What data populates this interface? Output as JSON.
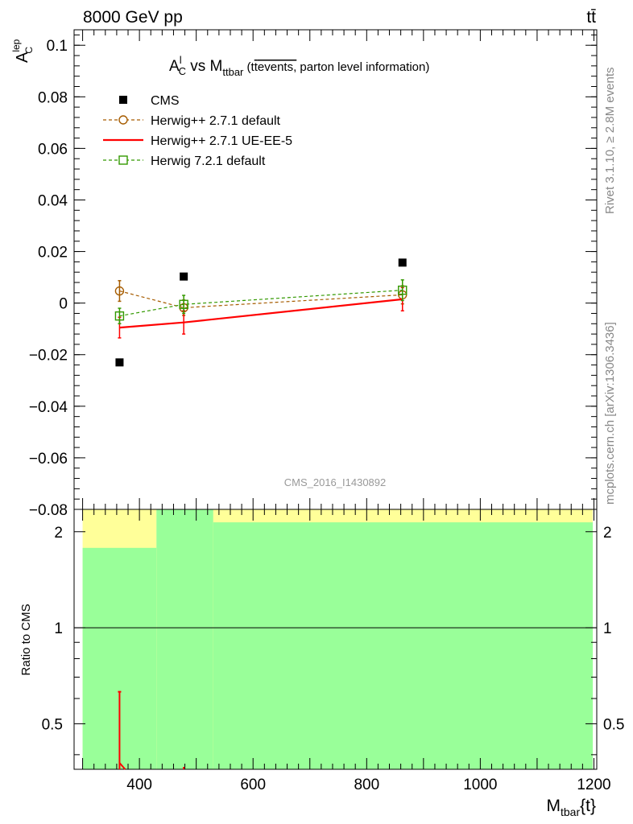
{
  "header": {
    "energy_label": "8000 GeV pp",
    "process_label": "tt̄"
  },
  "side_labels": {
    "rivet": "Rivet 3.1.10, ≥ 2.8M events",
    "mcplots": "mcplots.cern.ch [arXiv:1306.3436]"
  },
  "chart_data": [
    {
      "type": "scatter",
      "title": {
        "main": "A",
        "main_sup": "l",
        "main_sub": "C",
        "vs": " vs M",
        "vs_sub": "ttbar",
        "paren_open": " (t",
        "tbar": "t",
        "overlined": "events,",
        "rest": " parton level information)"
      },
      "ylabel": {
        "base": "A",
        "sup": "lep",
        "sub": "C"
      },
      "xlim": [
        285,
        1205
      ],
      "ylim": [
        -0.08,
        0.106
      ],
      "grid": false,
      "yticks": [
        -0.08,
        -0.06,
        -0.04,
        -0.02,
        0,
        0.02,
        0.04,
        0.06,
        0.08,
        0.1
      ],
      "ytick_labels": [
        "−0.08",
        "−0.06",
        "−0.04",
        "−0.02",
        "0",
        "0.02",
        "0.04",
        "0.06",
        "0.08",
        "0.1"
      ],
      "legend_position": "top-left",
      "watermark": "CMS_2016_I1430892",
      "series": [
        {
          "name": "CMS",
          "style": "data",
          "color": "#000000",
          "x": [
            365,
            478,
            863
          ],
          "y": [
            -0.023,
            0.0103,
            0.0157
          ]
        },
        {
          "name": "Herwig++ 2.7.1 default",
          "style": "circle-dashed",
          "color": "#a65c00",
          "x": [
            365,
            478,
            863
          ],
          "y": [
            0.0047,
            -0.0018,
            0.0032
          ],
          "err": [
            0.004,
            0.003,
            0.0035
          ]
        },
        {
          "name": "Herwig++ 2.7.1 UE-EE-5",
          "style": "solid",
          "color": "#ff0000",
          "x": [
            365,
            478,
            863
          ],
          "y": [
            -0.0095,
            -0.0075,
            0.0015
          ],
          "err": [
            0.004,
            0.0045,
            0.0045
          ]
        },
        {
          "name": "Herwig 7.2.1 default",
          "style": "square-dashed",
          "color": "#339900",
          "x": [
            365,
            478,
            863
          ],
          "y": [
            -0.005,
            -0.0005,
            0.005
          ],
          "err": [
            0.003,
            0.0035,
            0.004
          ]
        }
      ]
    },
    {
      "type": "area",
      "ylabel": "Ratio to CMS",
      "xlabel": {
        "base": "M",
        "sub": "tbar",
        "rest": "{t}"
      },
      "log_y": true,
      "xlim": [
        285,
        1205
      ],
      "ylim": [
        0.36,
        2.35
      ],
      "yticks": [
        0.5,
        1,
        2
      ],
      "ytick_labels": [
        "0.5",
        "1",
        "2"
      ],
      "xticks": [
        400,
        600,
        800,
        1000,
        1200
      ],
      "xtick_labels": [
        "400",
        "600",
        "800",
        "1000",
        "1200"
      ],
      "reference_line": 1,
      "bands": [
        {
          "x0": 300,
          "x1": 430,
          "green": [
            0.36,
            1.78
          ],
          "yellow": [
            0.36,
            2.35
          ]
        },
        {
          "x0": 430,
          "x1": 530,
          "green": [
            0.36,
            2.35
          ],
          "yellow": [
            0.36,
            2.35
          ]
        },
        {
          "x0": 530,
          "x1": 1198,
          "green": [
            0.36,
            2.14
          ],
          "yellow": [
            0.36,
            2.35
          ]
        }
      ],
      "band_colors": {
        "yellow": "#ffff99",
        "green": "#99ff99"
      },
      "ratio_series": [
        {
          "name": "Herwig++ 2.7.1 UE-EE-5",
          "color": "#ff0000",
          "x": [
            365,
            372,
            478
          ],
          "y": [
            0.36,
            0.36,
            0.36
          ],
          "err_top_at_first": 0.63
        }
      ]
    }
  ]
}
